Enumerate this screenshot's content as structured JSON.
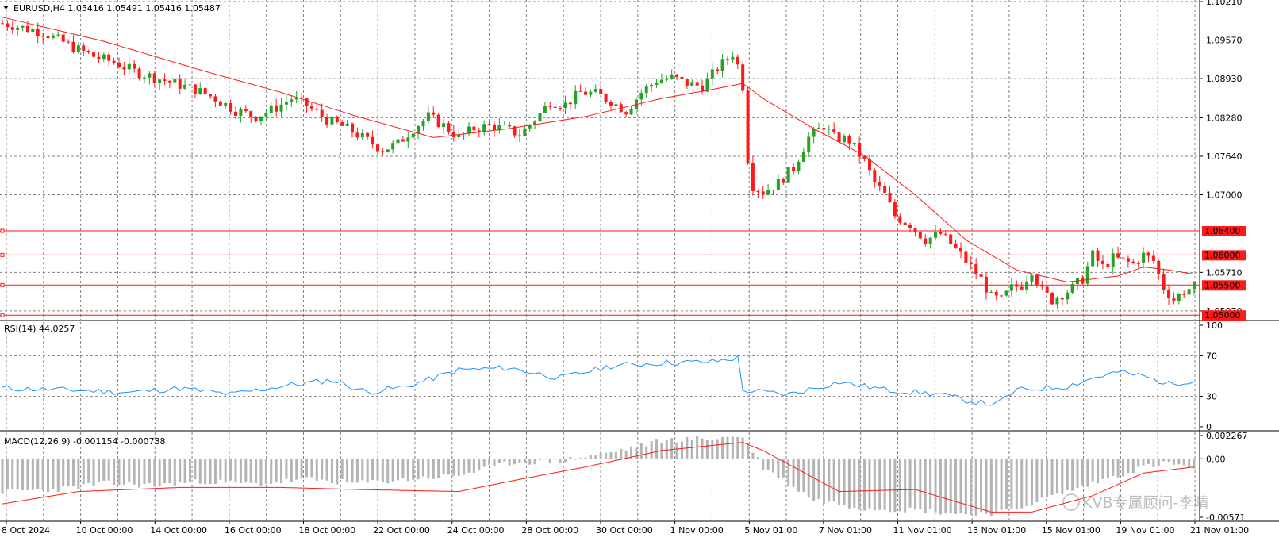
{
  "colors": {
    "up": "#26a226",
    "down": "#ff1a1a",
    "ma": "#ff1a1a",
    "rsi": "#1e90ff",
    "hist": "#b4b4b4",
    "signal": "#ff1a1a",
    "hline": "#ff1a1a",
    "grid": "#808080",
    "tag_bg": "#ff1a1a",
    "tag_text": "#ffffff"
  },
  "main": {
    "title": "EURUSD,H4  1.05416 1.05491 1.05416 1.05487",
    "title_icon": "triangle-down-icon"
  },
  "rsi": {
    "title": "RSI(14) 44.0257"
  },
  "macd": {
    "title": "MACD(12,26,9) -0.001154 -0.000738"
  },
  "watermark": "KVB专属顾问-李晴",
  "x_labels": [
    "8 Oct 2024",
    "10 Oct 00:00",
    "14 Oct 00:00",
    "16 Oct 00:00",
    "18 Oct 00:00",
    "22 Oct 00:00",
    "24 Oct 00:00",
    "28 Oct 00:00",
    "30 Oct 00:00",
    "1 Nov 00:00",
    "5 Nov 01:00",
    "7 Nov 01:00",
    "11 Nov 01:00",
    "13 Nov 01:00",
    "15 Nov 01:00",
    "19 Nov 01:00",
    "21 Nov 01:00"
  ],
  "chart_data": [
    {
      "type": "candlestick",
      "symbol": "EURUSD",
      "timeframe": "H4",
      "last": {
        "open": 1.05416,
        "high": 1.05491,
        "low": 1.05416,
        "close": 1.05487
      },
      "y_ticks": [
        "1.10210",
        "1.09570",
        "1.08930",
        "1.08280",
        "1.07640",
        "1.07000",
        "1.05710",
        "1.05070"
      ],
      "ylim": [
        1.0495,
        1.1021
      ],
      "horizontal_levels": [
        "1.06400",
        "1.06000",
        "1.05500",
        "1.05000"
      ],
      "overlay": "moving average (red)",
      "close_path": [
        [
          0,
          1.0985
        ],
        [
          8,
          1.097
        ],
        [
          14,
          1.0945
        ],
        [
          18,
          1.093
        ],
        [
          22,
          1.092
        ],
        [
          26,
          1.0905
        ],
        [
          32,
          1.089
        ],
        [
          38,
          1.0875
        ],
        [
          42,
          1.086
        ],
        [
          46,
          1.084
        ],
        [
          50,
          1.083
        ],
        [
          54,
          1.0845
        ],
        [
          57,
          1.086
        ],
        [
          60,
          1.0848
        ],
        [
          64,
          1.0825
        ],
        [
          68,
          1.081
        ],
        [
          72,
          1.079
        ],
        [
          75,
          1.0775
        ],
        [
          78,
          1.0785
        ],
        [
          81,
          1.081
        ],
        [
          84,
          1.083
        ],
        [
          87,
          1.0815
        ],
        [
          90,
          1.0795
        ],
        [
          93,
          1.081
        ],
        [
          96,
          1.0815
        ],
        [
          99,
          1.081
        ],
        [
          102,
          1.08
        ],
        [
          105,
          1.0825
        ],
        [
          108,
          1.0855
        ],
        [
          111,
          1.085
        ],
        [
          114,
          1.087
        ],
        [
          117,
          1.0868
        ],
        [
          120,
          1.0855
        ],
        [
          123,
          1.084
        ],
        [
          126,
          1.087
        ],
        [
          129,
          1.089
        ],
        [
          132,
          1.0895
        ],
        [
          135,
          1.0885
        ],
        [
          138,
          1.088
        ],
        [
          141,
          1.091
        ],
        [
          144,
          1.0935
        ],
        [
          145,
          1.0915
        ],
        [
          146,
          1.088
        ],
        [
          147,
          1.076
        ],
        [
          148,
          1.0715
        ],
        [
          150,
          1.0705
        ],
        [
          153,
          1.072
        ],
        [
          156,
          1.0745
        ],
        [
          159,
          1.0795
        ],
        [
          162,
          1.0815
        ],
        [
          164,
          1.0795
        ],
        [
          167,
          1.079
        ],
        [
          170,
          1.0755
        ],
        [
          172,
          1.072
        ],
        [
          174,
          1.07
        ],
        [
          176,
          1.0665
        ],
        [
          179,
          1.065
        ],
        [
          182,
          1.0625
        ],
        [
          185,
          1.0635
        ],
        [
          188,
          1.061
        ],
        [
          191,
          1.058
        ],
        [
          193,
          1.056
        ],
        [
          195,
          1.053
        ],
        [
          197,
          1.0525
        ],
        [
          199,
          1.0545
        ],
        [
          201,
          1.055
        ],
        [
          203,
          1.0575
        ],
        [
          205,
          1.054
        ],
        [
          207,
          1.0525
        ],
        [
          209,
          1.0535
        ],
        [
          211,
          1.0545
        ],
        [
          213,
          1.056
        ],
        [
          215,
          1.06
        ],
        [
          217,
          1.058
        ],
        [
          219,
          1.0595
        ],
        [
          221,
          1.059
        ],
        [
          223,
          1.0585
        ],
        [
          225,
          1.06
        ],
        [
          227,
          1.059
        ],
        [
          229,
          1.0545
        ],
        [
          231,
          1.0525
        ],
        [
          233,
          1.054
        ],
        [
          235,
          1.0548
        ]
      ],
      "ma_path": [
        [
          0,
          1.0995
        ],
        [
          20,
          1.0955
        ],
        [
          40,
          1.0905
        ],
        [
          55,
          1.087
        ],
        [
          70,
          1.083
        ],
        [
          85,
          1.0795
        ],
        [
          100,
          1.081
        ],
        [
          115,
          1.083
        ],
        [
          130,
          1.086
        ],
        [
          140,
          1.0875
        ],
        [
          146,
          1.0885
        ],
        [
          150,
          1.086
        ],
        [
          160,
          1.081
        ],
        [
          170,
          1.0765
        ],
        [
          180,
          1.07
        ],
        [
          190,
          1.0625
        ],
        [
          200,
          1.0575
        ],
        [
          210,
          1.0555
        ],
        [
          220,
          1.0565
        ],
        [
          225,
          1.058
        ],
        [
          230,
          1.0575
        ],
        [
          235,
          1.0568
        ]
      ]
    },
    {
      "type": "line",
      "name": "RSI(14)",
      "last": 44.0257,
      "y_ticks": [
        "100",
        "70",
        "30",
        "0"
      ],
      "ylim": [
        0,
        100
      ],
      "values_path": [
        [
          0,
          38
        ],
        [
          15,
          36
        ],
        [
          25,
          34
        ],
        [
          35,
          38
        ],
        [
          45,
          32
        ],
        [
          55,
          40
        ],
        [
          65,
          46
        ],
        [
          72,
          34
        ],
        [
          80,
          40
        ],
        [
          90,
          56
        ],
        [
          100,
          58
        ],
        [
          110,
          48
        ],
        [
          120,
          60
        ],
        [
          130,
          63
        ],
        [
          140,
          64
        ],
        [
          145,
          68
        ],
        [
          146,
          36
        ],
        [
          155,
          32
        ],
        [
          165,
          44
        ],
        [
          175,
          36
        ],
        [
          185,
          32
        ],
        [
          190,
          26
        ],
        [
          196,
          22
        ],
        [
          200,
          36
        ],
        [
          210,
          40
        ],
        [
          215,
          48
        ],
        [
          220,
          54
        ],
        [
          225,
          50
        ],
        [
          230,
          42
        ],
        [
          235,
          46
        ]
      ]
    },
    {
      "type": "bar+line",
      "name": "MACD(12,26,9)",
      "macd": -0.001154,
      "signal": -0.000738,
      "y_ticks": [
        "0.002267",
        "0.00",
        "-0.00571"
      ],
      "ylim": [
        -0.00571,
        0.002267
      ],
      "histogram_path": [
        [
          0,
          -0.0032
        ],
        [
          10,
          -0.003
        ],
        [
          20,
          -0.0024
        ],
        [
          30,
          -0.0026
        ],
        [
          40,
          -0.0022
        ],
        [
          50,
          -0.0025
        ],
        [
          60,
          -0.002
        ],
        [
          70,
          -0.0024
        ],
        [
          80,
          -0.002
        ],
        [
          90,
          -0.0016
        ],
        [
          100,
          -0.0004
        ],
        [
          110,
          -0.0002
        ],
        [
          120,
          0.0006
        ],
        [
          130,
          0.0018
        ],
        [
          140,
          0.002
        ],
        [
          146,
          0.0022
        ],
        [
          150,
          -0.0008
        ],
        [
          160,
          -0.004
        ],
        [
          170,
          -0.0048
        ],
        [
          180,
          -0.005
        ],
        [
          190,
          -0.0054
        ],
        [
          198,
          -0.0052
        ],
        [
          205,
          -0.004
        ],
        [
          215,
          -0.0024
        ],
        [
          225,
          -0.0008
        ],
        [
          230,
          -0.0004
        ],
        [
          235,
          -0.001
        ]
      ],
      "signal_path": [
        [
          0,
          -0.0044
        ],
        [
          15,
          -0.0032
        ],
        [
          35,
          -0.0028
        ],
        [
          55,
          -0.0028
        ],
        [
          70,
          -0.003
        ],
        [
          90,
          -0.0032
        ],
        [
          100,
          -0.0022
        ],
        [
          115,
          -0.0008
        ],
        [
          130,
          0.0008
        ],
        [
          146,
          0.0016
        ],
        [
          150,
          0.0008
        ],
        [
          165,
          -0.0032
        ],
        [
          180,
          -0.003
        ],
        [
          195,
          -0.0052
        ],
        [
          203,
          -0.0052
        ],
        [
          215,
          -0.0036
        ],
        [
          225,
          -0.0014
        ],
        [
          235,
          -0.0008
        ]
      ]
    }
  ]
}
